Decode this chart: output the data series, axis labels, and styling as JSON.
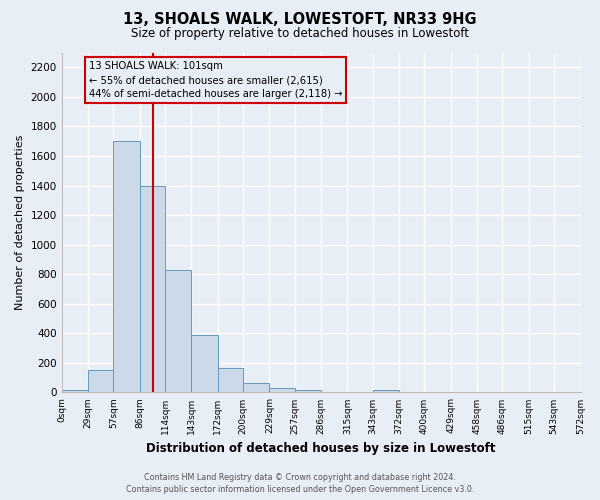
{
  "title": "13, SHOALS WALK, LOWESTOFT, NR33 9HG",
  "subtitle": "Size of property relative to detached houses in Lowestoft",
  "xlabel": "Distribution of detached houses by size in Lowestoft",
  "ylabel": "Number of detached properties",
  "bin_labels": [
    "0sqm",
    "29sqm",
    "57sqm",
    "86sqm",
    "114sqm",
    "143sqm",
    "172sqm",
    "200sqm",
    "229sqm",
    "257sqm",
    "286sqm",
    "315sqm",
    "343sqm",
    "372sqm",
    "400sqm",
    "429sqm",
    "458sqm",
    "486sqm",
    "515sqm",
    "543sqm",
    "572sqm"
  ],
  "bar_values": [
    15,
    155,
    1700,
    1400,
    830,
    390,
    165,
    65,
    30,
    15,
    0,
    0,
    15,
    0,
    0,
    0,
    0,
    0,
    0,
    0
  ],
  "bar_color": "#ccd9e8",
  "bar_edge_color": "#6699bb",
  "property_size": 101,
  "vline_color": "#cc0000",
  "annotation_title": "13 SHOALS WALK: 101sqm",
  "annotation_line1": "← 55% of detached houses are smaller (2,615)",
  "annotation_line2": "44% of semi-detached houses are larger (2,118) →",
  "annotation_box_color": "#cc0000",
  "ylim": [
    0,
    2300
  ],
  "yticks": [
    0,
    200,
    400,
    600,
    800,
    1000,
    1200,
    1400,
    1600,
    1800,
    2000,
    2200
  ],
  "bg_color": "#e8eef5",
  "footer1": "Contains HM Land Registry data © Crown copyright and database right 2024.",
  "footer2": "Contains public sector information licensed under the Open Government Licence v3.0."
}
